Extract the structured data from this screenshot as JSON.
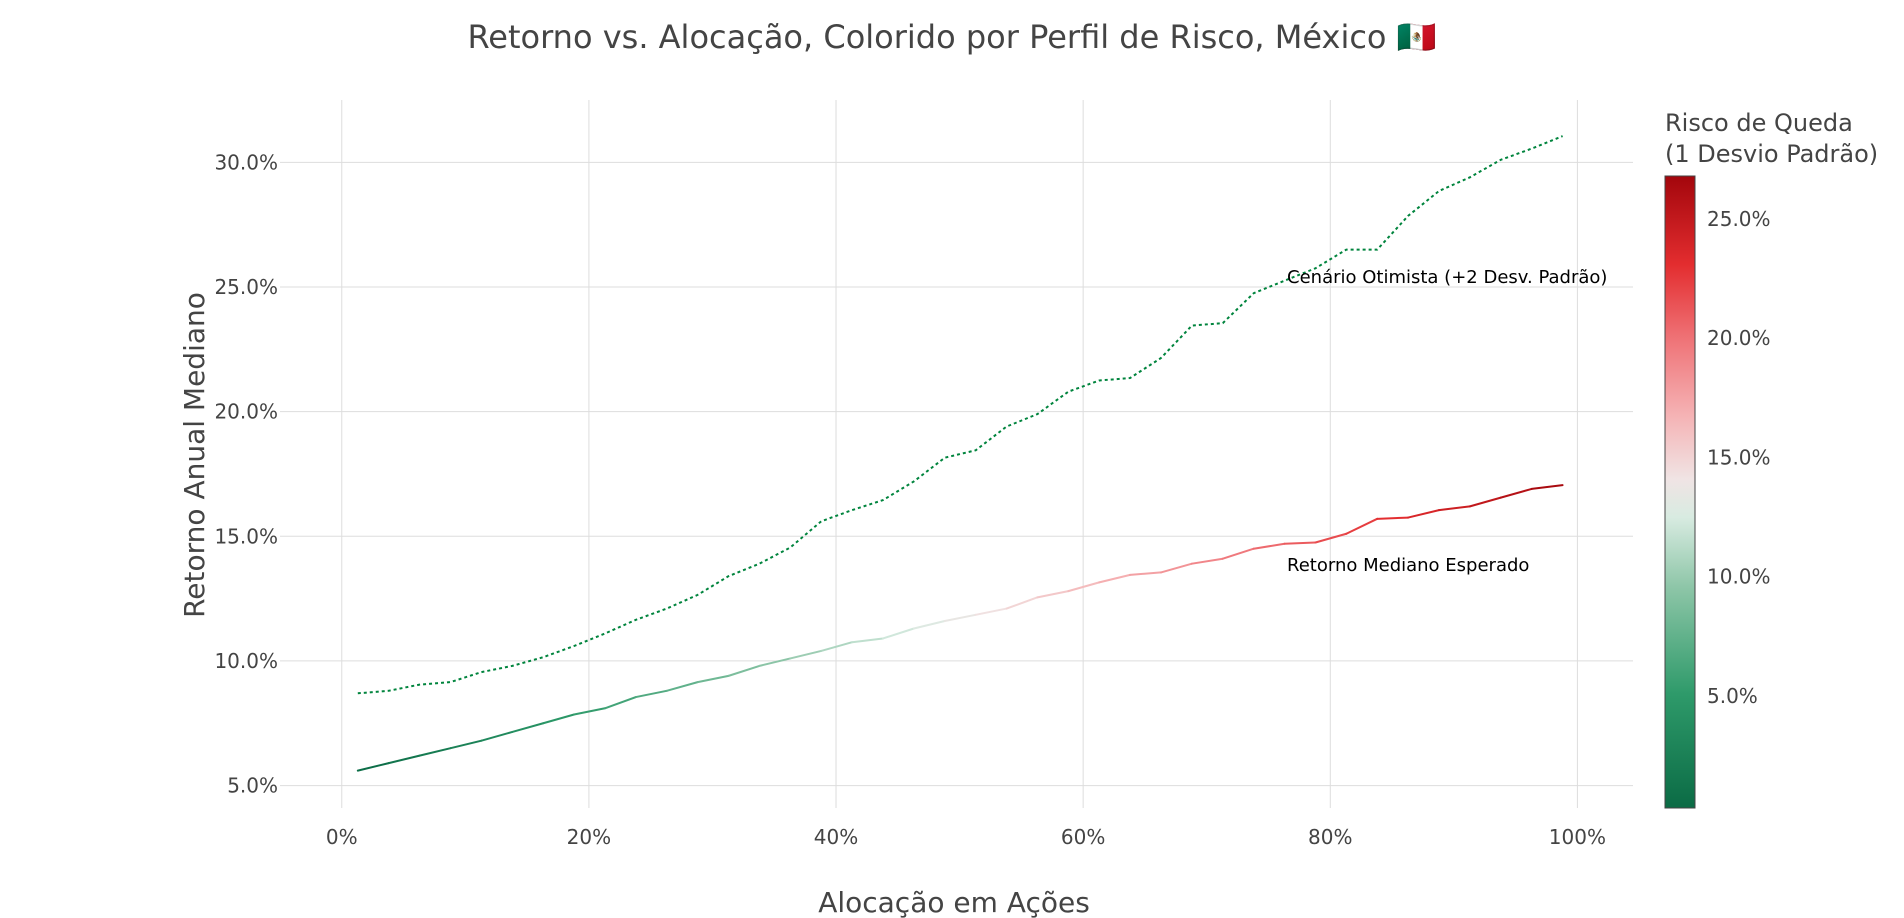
{
  "chart_data": {
    "type": "line",
    "title": "Retorno vs. Alocação, Colorido por Perfil de Risco, México 🇲🇽",
    "xlabel": "Alocação em Ações",
    "ylabel": "Retorno Anual Mediano",
    "xlim": [
      -0.05,
      1.045
    ],
    "ylim": [
      0.041,
      0.325
    ],
    "x_ticks": [
      0,
      0.2,
      0.4,
      0.6,
      0.8,
      1.0
    ],
    "x_tick_labels": [
      "0%",
      "20%",
      "40%",
      "60%",
      "80%",
      "100%"
    ],
    "y_ticks": [
      0.05,
      0.1,
      0.15,
      0.2,
      0.25,
      0.3
    ],
    "y_tick_labels": [
      "5.0%",
      "10.0%",
      "15.0%",
      "20.0%",
      "25.0%",
      "30.0%"
    ],
    "grid": true,
    "x": [
      0.013,
      0.038,
      0.063,
      0.088,
      0.113,
      0.138,
      0.163,
      0.188,
      0.213,
      0.238,
      0.263,
      0.288,
      0.313,
      0.338,
      0.363,
      0.388,
      0.413,
      0.438,
      0.463,
      0.488,
      0.513,
      0.538,
      0.563,
      0.588,
      0.613,
      0.638,
      0.663,
      0.688,
      0.713,
      0.738,
      0.763,
      0.788,
      0.813,
      0.838,
      0.863,
      0.888,
      0.913,
      0.938,
      0.963,
      0.988
    ],
    "series": [
      {
        "name": "Retorno Mediano Esperado",
        "style": "solid",
        "values": [
          0.056,
          0.059,
          0.062,
          0.065,
          0.068,
          0.0715,
          0.075,
          0.0785,
          0.081,
          0.0855,
          0.088,
          0.0915,
          0.094,
          0.098,
          0.101,
          0.104,
          0.1075,
          0.109,
          0.113,
          0.116,
          0.1185,
          0.121,
          0.1255,
          0.128,
          0.1315,
          0.1345,
          0.1355,
          0.139,
          0.141,
          0.145,
          0.147,
          0.1475,
          0.151,
          0.157,
          0.1575,
          0.1605,
          0.162,
          0.1655,
          0.169,
          0.1705
        ]
      },
      {
        "name": "Cenário Otimista (+2 Desv. Padrão)",
        "style": "dotted",
        "color": "#00843d",
        "values": [
          0.087,
          0.088,
          0.0905,
          0.0915,
          0.0955,
          0.098,
          0.1015,
          0.106,
          0.111,
          0.1165,
          0.121,
          0.1265,
          0.134,
          0.139,
          0.1455,
          0.156,
          0.1605,
          0.1645,
          0.172,
          0.1815,
          0.1845,
          0.194,
          0.199,
          0.208,
          0.2125,
          0.2135,
          0.2215,
          0.2345,
          0.2355,
          0.2475,
          0.2525,
          0.2575,
          0.265,
          0.265,
          0.2785,
          0.2885,
          0.294,
          0.301,
          0.3055,
          0.3105
        ]
      }
    ],
    "annotations": [
      {
        "text": "Cenário Otimista (+2 Desv. Padrão)",
        "x": 0.765,
        "y": 0.2515
      },
      {
        "text": "Retorno Mediano Esperado",
        "x": 0.765,
        "y": 0.136
      }
    ],
    "colorbar": {
      "title_line1": "Risco de Queda",
      "title_line2": "(1 Desvio Padrão)",
      "range": [
        0.003,
        0.268
      ],
      "ticks": [
        0.05,
        0.1,
        0.15,
        0.2,
        0.25
      ],
      "tick_labels": [
        "5.0%",
        "10.0%",
        "15.0%",
        "20.0%",
        "25.0%"
      ],
      "colorscale": [
        [
          0.0,
          "#0b6b45"
        ],
        [
          0.18,
          "#2e9a6a"
        ],
        [
          0.35,
          "#8ec6a8"
        ],
        [
          0.46,
          "#d8ebe1"
        ],
        [
          0.52,
          "#f0e4e4"
        ],
        [
          0.62,
          "#f5b3b5"
        ],
        [
          0.74,
          "#ef7478"
        ],
        [
          0.86,
          "#e32d2f"
        ],
        [
          1.0,
          "#a3060c"
        ]
      ]
    }
  }
}
